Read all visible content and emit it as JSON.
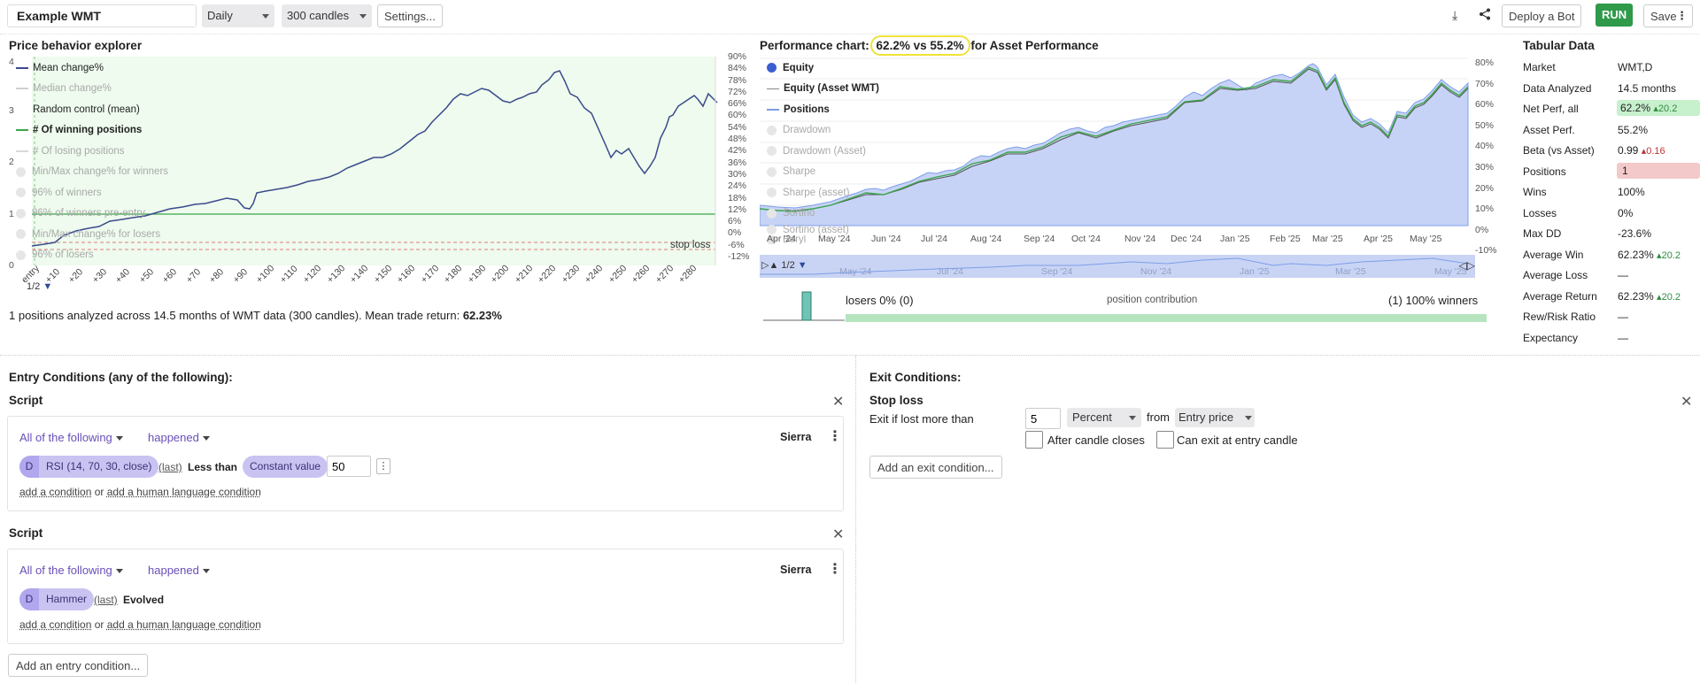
{
  "toolbar": {
    "strategy_name": "Example WMT",
    "timeframe": "Daily",
    "candles": "300 candles",
    "settings_label": "Settings...",
    "deploy_label": "Deploy a Bot",
    "run_label": "RUN",
    "save_label": "Save"
  },
  "price_panel": {
    "title": "Price behavior explorer",
    "legend": [
      {
        "label": "Mean change%",
        "state": "on",
        "color": "#3a4a8c"
      },
      {
        "label": "Median change%",
        "state": "off"
      },
      {
        "label": "Random control (mean)",
        "state": "on",
        "color": "#333"
      },
      {
        "label": "# Of winning positions",
        "state": "on",
        "color": "#3aa64a"
      },
      {
        "label": "# Of losing positions",
        "state": "off"
      },
      {
        "label": "Min/Max change% for winners",
        "state": "off"
      },
      {
        "label": "96% of winners",
        "state": "off"
      },
      {
        "label": "96% of winners pre-entry",
        "state": "off"
      },
      {
        "label": "Min/Max change% for losers",
        "state": "off"
      },
      {
        "label": "96% of losers",
        "state": "off"
      }
    ],
    "y_right": [
      "90%",
      "84%",
      "78%",
      "72%",
      "66%",
      "60%",
      "54%",
      "48%",
      "42%",
      "36%",
      "30%",
      "24%",
      "18%",
      "12%",
      "6%",
      "0%",
      "-6%",
      "-12%"
    ],
    "y_left": [
      "4",
      "3",
      "2",
      "1",
      "0"
    ],
    "x_labels": [
      "entry",
      "+10",
      "+20",
      "+30",
      "+40",
      "+50",
      "+60",
      "+70",
      "+80",
      "+90",
      "+100",
      "+110",
      "+120",
      "+130",
      "+140",
      "+150",
      "+160",
      "+170",
      "+180",
      "+190",
      "+200",
      "+210",
      "+220",
      "+230",
      "+240",
      "+250",
      "+260",
      "+270",
      "+280"
    ],
    "stop_loss_label": "stop loss",
    "pager": "1/2",
    "summary_prefix": "1 positions analyzed across 14.5 months of WMT data (300 candles). Mean trade return: ",
    "summary_value": "62.23%"
  },
  "perf_panel": {
    "title_prefix": "Performance chart: ",
    "title_highlight": "62.2% vs 55.2%",
    "title_suffix": " for Asset Performance",
    "legend": [
      {
        "label": "Equity",
        "state": "on",
        "color": "#3a5fd0"
      },
      {
        "label": "Equity (Asset WMT)",
        "state": "on",
        "color": "#888"
      },
      {
        "label": "Positions",
        "state": "on",
        "color": "#7d9ee8"
      },
      {
        "label": "Drawdown",
        "state": "off"
      },
      {
        "label": "Drawdown (Asset)",
        "state": "off"
      },
      {
        "label": "Sharpe",
        "state": "off"
      },
      {
        "label": "Sharpe (asset)",
        "state": "off"
      },
      {
        "label": "Sortino",
        "state": "off"
      },
      {
        "label": "Sortino (asset)",
        "state": "off"
      },
      {
        "label": "Beryl",
        "state": "off"
      }
    ],
    "y_right": [
      "80%",
      "70%",
      "60%",
      "50%",
      "40%",
      "30%",
      "20%",
      "10%",
      "0%",
      "-10%"
    ],
    "x_labels": [
      "Apr '24",
      "May '24",
      "Jun '24",
      "Jul '24",
      "Aug '24",
      "Sep '24",
      "Oct '24",
      "Nov '24",
      "Dec '24",
      "Jan '25",
      "Feb '25",
      "Mar '25",
      "Apr '25",
      "May '25"
    ],
    "nav_labels": [
      "May '24",
      "Jul '24",
      "Sep '24",
      "Nov '24",
      "Jan '25",
      "Mar '25",
      "May '25"
    ],
    "pager": "1/2",
    "losers_label": "losers 0% (0)",
    "contribution_label": "position contribution",
    "winners_label": "(1) 100% winners"
  },
  "tabular": {
    "title": "Tabular Data",
    "rows": [
      {
        "k": "Market",
        "v": "WMT,D"
      },
      {
        "k": "Data Analyzed",
        "v": "14.5 months"
      },
      {
        "k": "Net Perf, all",
        "v": "62.2%",
        "delta": "20.2",
        "style": "green"
      },
      {
        "k": "Asset Perf.",
        "v": "55.2%"
      },
      {
        "k": "Beta (vs Asset)",
        "v": "0.99",
        "delta": "0.16",
        "style": "red-delta"
      },
      {
        "k": "Positions",
        "v": "1",
        "style": "red"
      },
      {
        "k": "Wins",
        "v": "100%"
      },
      {
        "k": "Losses",
        "v": "0%"
      },
      {
        "k": "Max DD",
        "v": "-23.6%"
      },
      {
        "k": "Average Win",
        "v": "62.23%",
        "delta": "20.2",
        "style": "green-delta"
      },
      {
        "k": "Average Loss",
        "v": "—"
      },
      {
        "k": "Average Return",
        "v": "62.23%",
        "delta": "20.2",
        "style": "green-delta"
      },
      {
        "k": "Rew/Risk Ratio",
        "v": "—"
      },
      {
        "k": "Expectancy",
        "v": "—"
      }
    ]
  },
  "entry": {
    "title": "Entry Conditions (any of the following):",
    "scripts": [
      {
        "label": "Script",
        "mode": "All of the following",
        "when": "happened",
        "author": "Sierra",
        "pill_d": "D",
        "pill": "RSI (14, 70, 30, close)",
        "last": "(last)",
        "op": "Less than",
        "rhs": "Constant value",
        "value": "50"
      },
      {
        "label": "Script",
        "mode": "All of the following",
        "when": "happened",
        "author": "Sierra",
        "pill_d": "D",
        "pill": "Hammer",
        "last": "(last)",
        "op": "Evolved"
      }
    ],
    "add_condition": "add a condition",
    "or": " or ",
    "add_human": "add a human language condition",
    "add_entry": "Add an entry condition..."
  },
  "exit": {
    "title": "Exit Conditions:",
    "stop_title": "Stop loss",
    "lost_label": "Exit if lost more than",
    "value": "5",
    "unit": "Percent",
    "from": "from",
    "ref": "Entry price",
    "after_close": "After candle closes",
    "at_entry": "Can exit at entry candle",
    "add_exit": "Add an exit condition..."
  }
}
